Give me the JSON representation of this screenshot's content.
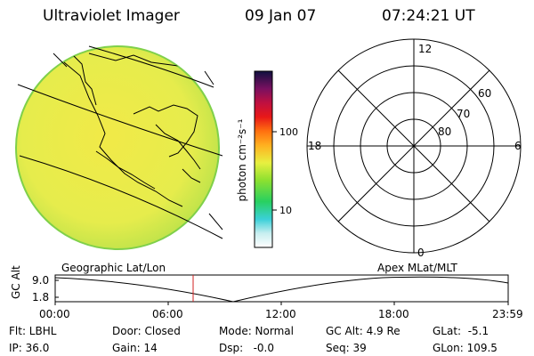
{
  "header": {
    "instrument": "Ultraviolet Imager",
    "date": "09 Jan 07",
    "time": "07:24:21 UT"
  },
  "colorbar": {
    "unit_label": "photon cm⁻²s⁻¹",
    "ticks": [
      "100",
      "10"
    ]
  },
  "polar_plot": {
    "mlt_labels": [
      "12",
      "18",
      "6",
      "0"
    ],
    "lat_labels": [
      "60",
      "70",
      "80"
    ]
  },
  "altitude_strip": {
    "y_label": "GC Alt",
    "y_ticks": [
      "9.0",
      "1.8"
    ],
    "left_title": "Geographic Lat/Lon",
    "right_title": "Apex MLat/MLT",
    "x_ticks": [
      "00:00",
      "06:00",
      "12:00",
      "18:00",
      "23:59"
    ]
  },
  "status": {
    "flt": "Flt: LBHL",
    "door": "Door: Closed",
    "mode": "Mode: Normal",
    "gc_alt": "GC Alt: 4.9 Re",
    "glat": "GLat:  -5.1",
    "ip": "IP: 36.0",
    "gain": "Gain: 14",
    "dsp": "Dsp:   -0.0",
    "seq": "Seq: 39",
    "glon": "GLon: 109.5"
  },
  "colors": {
    "disk_fill": "#e9ec4a",
    "disk_edge": "#7fd04a",
    "current_time_marker": "#d02020"
  }
}
